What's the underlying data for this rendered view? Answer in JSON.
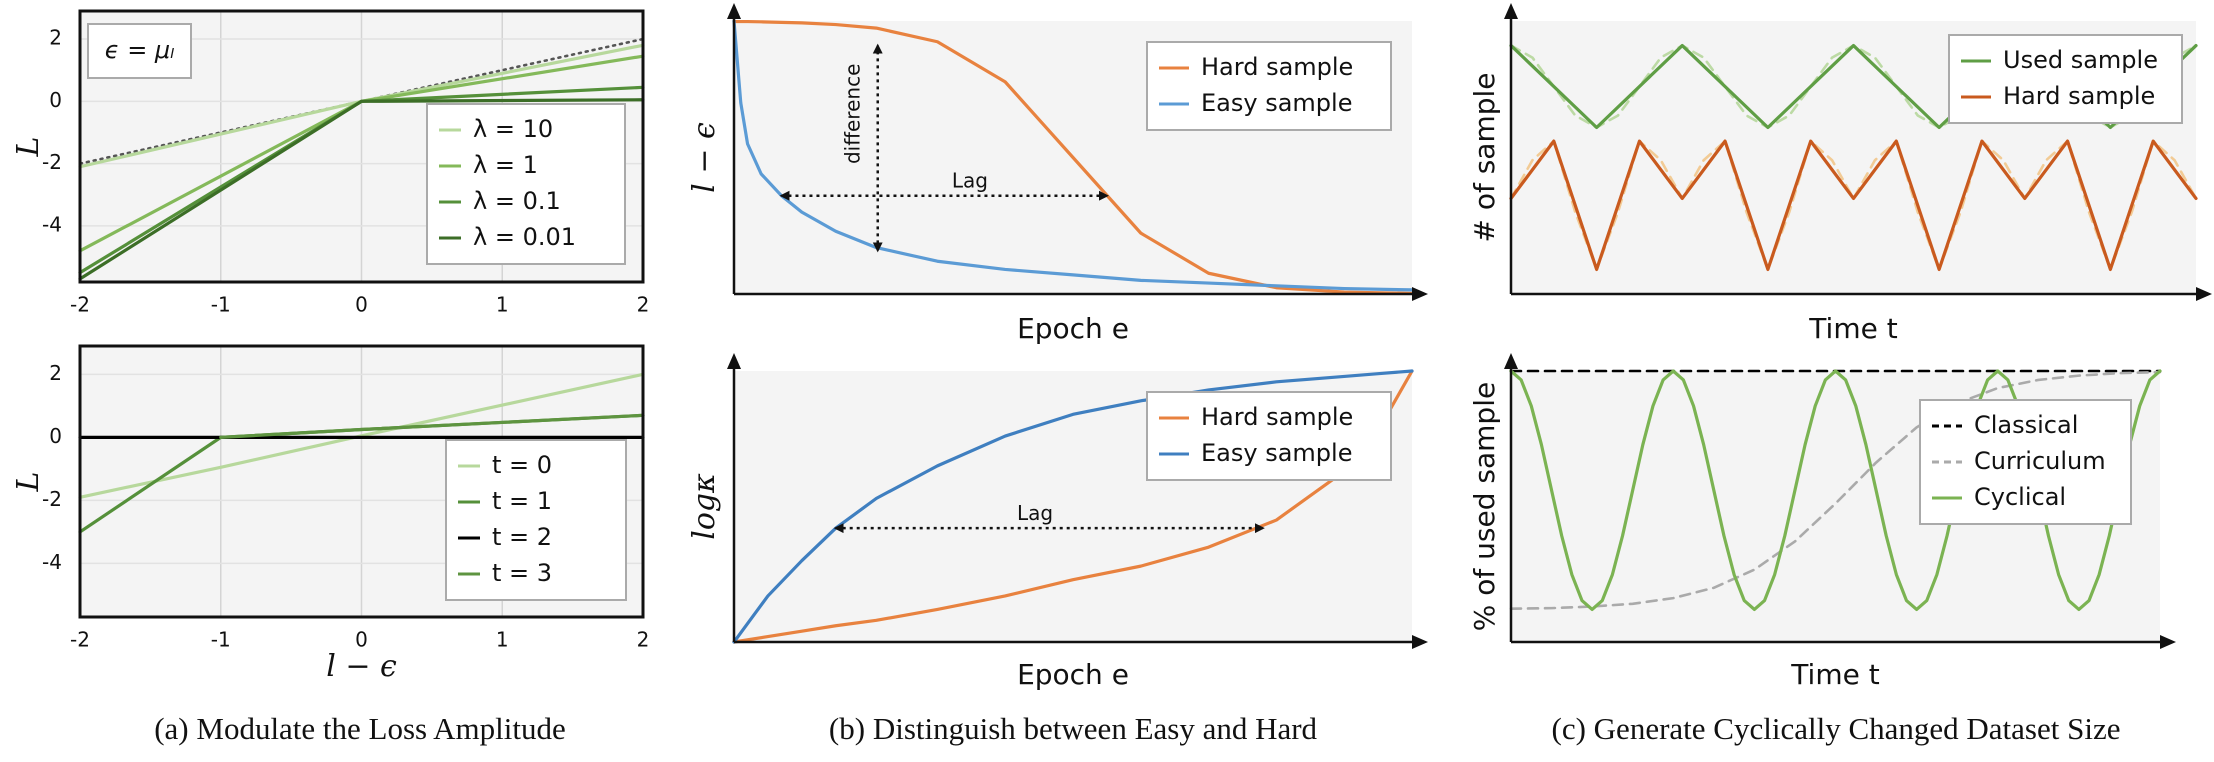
{
  "captions": [
    "(a) Modulate the Loss Amplitude",
    "(b) Distinguish between Easy and Hard",
    "(c) Generate Cyclically Changed Dataset Size"
  ],
  "chart_data": [
    {
      "type": "line",
      "ylabel": "L",
      "annotations": [
        "ϵ = μₗ"
      ],
      "x": [
        -2,
        0,
        2
      ],
      "series": [
        {
          "values": [
            -2.0,
            0,
            2.0
          ],
          "color": "#555555",
          "dash": "dotted"
        },
        {
          "name": "λ = 10",
          "color": "#b7d89c",
          "values": [
            -2.1,
            0,
            1.8
          ]
        },
        {
          "name": "λ = 1",
          "color": "#84b95a",
          "values": [
            -4.8,
            0,
            1.45
          ]
        },
        {
          "name": "λ = 0.1",
          "color": "#55903a",
          "values": [
            -5.5,
            0,
            0.45
          ]
        },
        {
          "name": "λ = 0.01",
          "color": "#3c6e27",
          "values": [
            -5.7,
            0,
            0.05
          ]
        }
      ],
      "xlim": [
        -2,
        2
      ],
      "ylim": [
        -5.8,
        2.9
      ],
      "xticks": [
        -2,
        -1,
        0,
        1,
        2
      ],
      "yticks": [
        -4,
        -2,
        0,
        2
      ],
      "grid": true,
      "legend": "lower right"
    },
    {
      "type": "line",
      "xlabel": "l − ϵ",
      "ylabel": "L",
      "x": [
        -2,
        -1,
        0,
        2
      ],
      "series": [
        {
          "name": "t = 0",
          "color": "#b7d89c",
          "values": [
            -1.9,
            -0.95,
            0.05,
            2.0
          ]
        },
        {
          "name": "t = 1",
          "color": "#55903a",
          "values": [
            -3.0,
            0,
            0.25,
            0.7
          ]
        },
        {
          "name": "t = 2",
          "color": "#000000",
          "values": [
            0,
            0,
            0,
            0
          ]
        },
        {
          "name": "t = 3",
          "color": "#5e9440",
          "values": [
            null,
            0,
            0.25,
            0.7
          ]
        }
      ],
      "xlim": [
        -2,
        2
      ],
      "ylim": [
        -5.7,
        2.9
      ],
      "xticks": [
        -2,
        -1,
        0,
        1,
        2
      ],
      "yticks": [
        -4,
        -2,
        0,
        2
      ],
      "grid": true,
      "legend": "lower right"
    },
    {
      "type": "line",
      "xlabel": "Epoch e",
      "ylabel": "l − ϵ",
      "annotations": [
        "difference",
        "Lag"
      ],
      "x": [
        0,
        1,
        2,
        4,
        7,
        10,
        15,
        21,
        30,
        40,
        50,
        60,
        70,
        80,
        90,
        100
      ],
      "series": [
        {
          "name": "Hard sample",
          "color": "#e8823f",
          "values": [
            99.8,
            99.8,
            99.8,
            99.7,
            99.5,
            99.3,
            98.7,
            97.4,
            92.4,
            77.7,
            50,
            22.3,
            7.6,
            2.3,
            0.7,
            0.2
          ]
        },
        {
          "name": "Easy sample",
          "color": "#5b9bd5",
          "values": [
            100,
            70,
            55,
            44,
            36,
            30,
            23,
            17,
            12,
            9,
            7,
            5,
            4,
            3,
            2,
            1.5
          ]
        }
      ],
      "xlim": [
        0,
        100
      ],
      "ylim": [
        0,
        100
      ],
      "legend": "upper right"
    },
    {
      "type": "line",
      "xlabel": "Epoch e",
      "ylabel": "logκ",
      "annotations": [
        "Lag"
      ],
      "x": [
        0,
        5,
        10,
        15,
        21,
        30,
        40,
        50,
        60,
        70,
        80,
        90,
        95,
        100
      ],
      "series": [
        {
          "name": "Hard sample",
          "color": "#e8823f",
          "values": [
            0,
            2,
            4,
            6,
            8,
            12,
            17,
            23,
            28,
            35,
            45,
            63,
            78,
            100
          ]
        },
        {
          "name": "Easy sample",
          "color": "#3f7fc0",
          "values": [
            0,
            17,
            30,
            42,
            53,
            65,
            76,
            84,
            89,
            93,
            96,
            98,
            99,
            100
          ]
        }
      ],
      "xlim": [
        0,
        100
      ],
      "ylim": [
        0,
        100
      ],
      "legend": "upper right"
    },
    {
      "type": "line",
      "xlabel": "Time t",
      "ylabel": "# of sample",
      "series": [
        {
          "color": "#bcdaa4",
          "dash": "dashed",
          "x": [
            0,
            3.125,
            6.25,
            9.375,
            12.5,
            15.625,
            18.75,
            21.875,
            25,
            28.125,
            31.25,
            34.375,
            37.5,
            40.625,
            43.75,
            46.875,
            50,
            53.125,
            56.25,
            59.375,
            62.5,
            65.625,
            68.75,
            71.875,
            75,
            78.125,
            81.25,
            84.375,
            87.5,
            90.625,
            93.75,
            96.875,
            100
          ],
          "values": [
            91,
            86.6,
            76,
            65.4,
            61,
            65.4,
            76,
            86.6,
            91,
            86.6,
            76,
            65.4,
            61,
            65.4,
            76,
            86.6,
            91,
            86.6,
            76,
            65.4,
            61,
            65.4,
            76,
            86.6,
            91,
            86.6,
            76,
            65.4,
            61,
            65.4,
            76,
            86.6,
            91
          ]
        },
        {
          "color": "#f2cb95",
          "dash": "dashed",
          "x": [
            0,
            3.125,
            6.25,
            9.375,
            12.5,
            15.625,
            18.75,
            21.875,
            25,
            28.125,
            31.25,
            34.375,
            37.5,
            40.625,
            43.75,
            46.875,
            50,
            53.125,
            56.25,
            59.375,
            62.5,
            65.625,
            68.75,
            71.875,
            75,
            78.125,
            81.25,
            84.375,
            87.5,
            90.625,
            93.75,
            96.875,
            100
          ],
          "values": [
            35,
            49,
            56,
            30,
            9,
            30,
            56,
            49,
            35,
            49,
            56,
            30,
            9,
            30,
            56,
            49,
            35,
            49,
            56,
            30,
            9,
            30,
            56,
            49,
            35,
            49,
            56,
            30,
            9,
            30,
            56,
            49,
            35
          ]
        },
        {
          "name": "Used sample",
          "color": "#5f9e45",
          "x": [
            0,
            12.5,
            25,
            37.5,
            50,
            62.5,
            75,
            87.5,
            100
          ],
          "values": [
            91,
            61,
            91,
            61,
            91,
            61,
            91,
            61,
            91
          ]
        },
        {
          "name": "Hard sample",
          "color": "#c95a1e",
          "x": [
            0,
            6.25,
            12.5,
            18.75,
            25,
            31.25,
            37.5,
            43.75,
            50,
            56.25,
            62.5,
            68.75,
            75,
            81.25,
            87.5,
            93.75,
            100
          ],
          "values": [
            35,
            56,
            9,
            56,
            35,
            56,
            9,
            56,
            35,
            56,
            9,
            56,
            35,
            56,
            9,
            56,
            35
          ]
        }
      ],
      "xlim": [
        0,
        100
      ],
      "ylim": [
        0,
        100
      ],
      "legend": "upper right"
    },
    {
      "type": "line",
      "xlabel": "Time t",
      "ylabel": "% of used sample",
      "series": [
        {
          "name": "Classical",
          "color": "#000000",
          "dash": "dashed",
          "x": [
            0,
            100
          ],
          "values": [
            100,
            100
          ]
        },
        {
          "name": "Curriculum",
          "color": "#aaaaaa",
          "dash": "dashed",
          "x": [
            0,
            6.25,
            12.5,
            18.75,
            25,
            31.25,
            37.5,
            43.75,
            50,
            56.25,
            62.5,
            68.75,
            75,
            81.25,
            87.5,
            93.75,
            100
          ],
          "values": [
            12.3,
            12.5,
            13.1,
            14.1,
            16.2,
            20,
            26.7,
            37.1,
            51.1,
            66.2,
            79.2,
            88.1,
            93.7,
            96.7,
            98.3,
            99.2,
            99.6
          ]
        },
        {
          "name": "Cyclical",
          "color": "#7bb352",
          "x": [
            0,
            1.5625,
            3.125,
            4.6875,
            6.25,
            7.8125,
            9.375,
            10.9375,
            12.5,
            14.0625,
            15.625,
            17.1875,
            18.75,
            20.3125,
            21.875,
            23.4375,
            25,
            26.5625,
            28.125,
            29.6875,
            31.25,
            32.8125,
            34.375,
            35.9375,
            37.5,
            39.0625,
            40.625,
            42.1875,
            43.75,
            45.3125,
            46.875,
            48.4375,
            50,
            51.5625,
            53.125,
            54.6875,
            56.25,
            57.8125,
            59.375,
            60.9375,
            62.5,
            64.0625,
            65.625,
            67.1875,
            68.75,
            70.3125,
            71.875,
            73.4375,
            75,
            76.5625,
            78.125,
            79.6875,
            81.25,
            82.8125,
            84.375,
            85.9375,
            87.5,
            89.0625,
            90.625,
            92.1875,
            93.75,
            95.3125,
            96.875,
            98.4375,
            100
          ],
          "values": [
            100,
            96.7,
            87.1,
            72.8,
            56,
            39.2,
            24.9,
            15.3,
            12,
            15.3,
            24.9,
            39.2,
            56,
            72.8,
            87.1,
            96.7,
            100,
            96.7,
            87.1,
            72.8,
            56,
            39.2,
            24.9,
            15.3,
            12,
            15.3,
            24.9,
            39.2,
            56,
            72.8,
            87.1,
            96.7,
            100,
            96.7,
            87.1,
            72.8,
            56,
            39.2,
            24.9,
            15.3,
            12,
            15.3,
            24.9,
            39.2,
            56,
            72.8,
            87.1,
            96.7,
            100,
            96.7,
            87.1,
            72.8,
            56,
            39.2,
            24.9,
            15.3,
            12,
            15.3,
            24.9,
            39.2,
            56,
            72.8,
            87.1,
            96.7,
            100
          ]
        }
      ],
      "xlim": [
        0,
        100
      ],
      "ylim": [
        0,
        100
      ],
      "legend": "upper right"
    }
  ]
}
